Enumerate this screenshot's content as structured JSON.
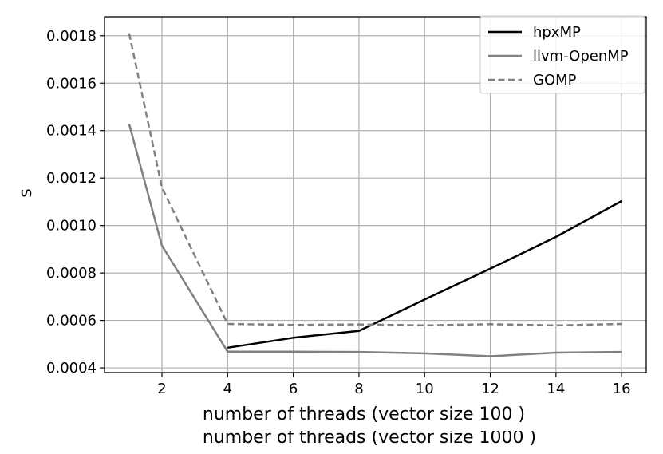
{
  "chart_data": {
    "type": "line",
    "xlabel": "number of threads (vector size 100 )",
    "ylabel": "s",
    "overlapping_xlabel": "number of threads (vector size 1000 )",
    "xlim": [
      0.25,
      16.75
    ],
    "ylim": [
      0.00038,
      0.00188
    ],
    "xticks": [
      2,
      4,
      6,
      8,
      10,
      12,
      14,
      16
    ],
    "yticks": [
      0.0004,
      0.0006,
      0.0008,
      0.001,
      0.0012,
      0.0014,
      0.0016,
      0.0018
    ],
    "ytick_labels": [
      "0.0004",
      "0.0006",
      "0.0008",
      "0.0010",
      "0.0012",
      "0.0014",
      "0.0016",
      "0.0018"
    ],
    "grid": true,
    "legend_position": "top-right",
    "series": [
      {
        "name": "hpxMP",
        "color": "#000000",
        "style": "solid",
        "x": [
          4,
          6,
          8,
          10,
          12,
          14,
          16
        ],
        "y": [
          0.000485,
          0.000527,
          0.000556,
          0.000688,
          0.000818,
          0.000952,
          0.001103
        ]
      },
      {
        "name": "llvm-OpenMP",
        "color": "#808080",
        "style": "solid",
        "x": [
          1,
          2,
          4,
          6,
          8,
          10,
          12,
          14,
          16
        ],
        "y": [
          0.001428,
          0.000915,
          0.000468,
          0.000468,
          0.000467,
          0.000461,
          0.000449,
          0.000464,
          0.000467
        ]
      },
      {
        "name": "GOMP",
        "color": "#808080",
        "style": "dashed",
        "x": [
          1,
          2,
          4,
          6,
          8,
          10,
          12,
          14,
          16
        ],
        "y": [
          0.00181,
          0.00116,
          0.000585,
          0.000581,
          0.000583,
          0.000579,
          0.000584,
          0.000579,
          0.000585
        ]
      }
    ]
  }
}
